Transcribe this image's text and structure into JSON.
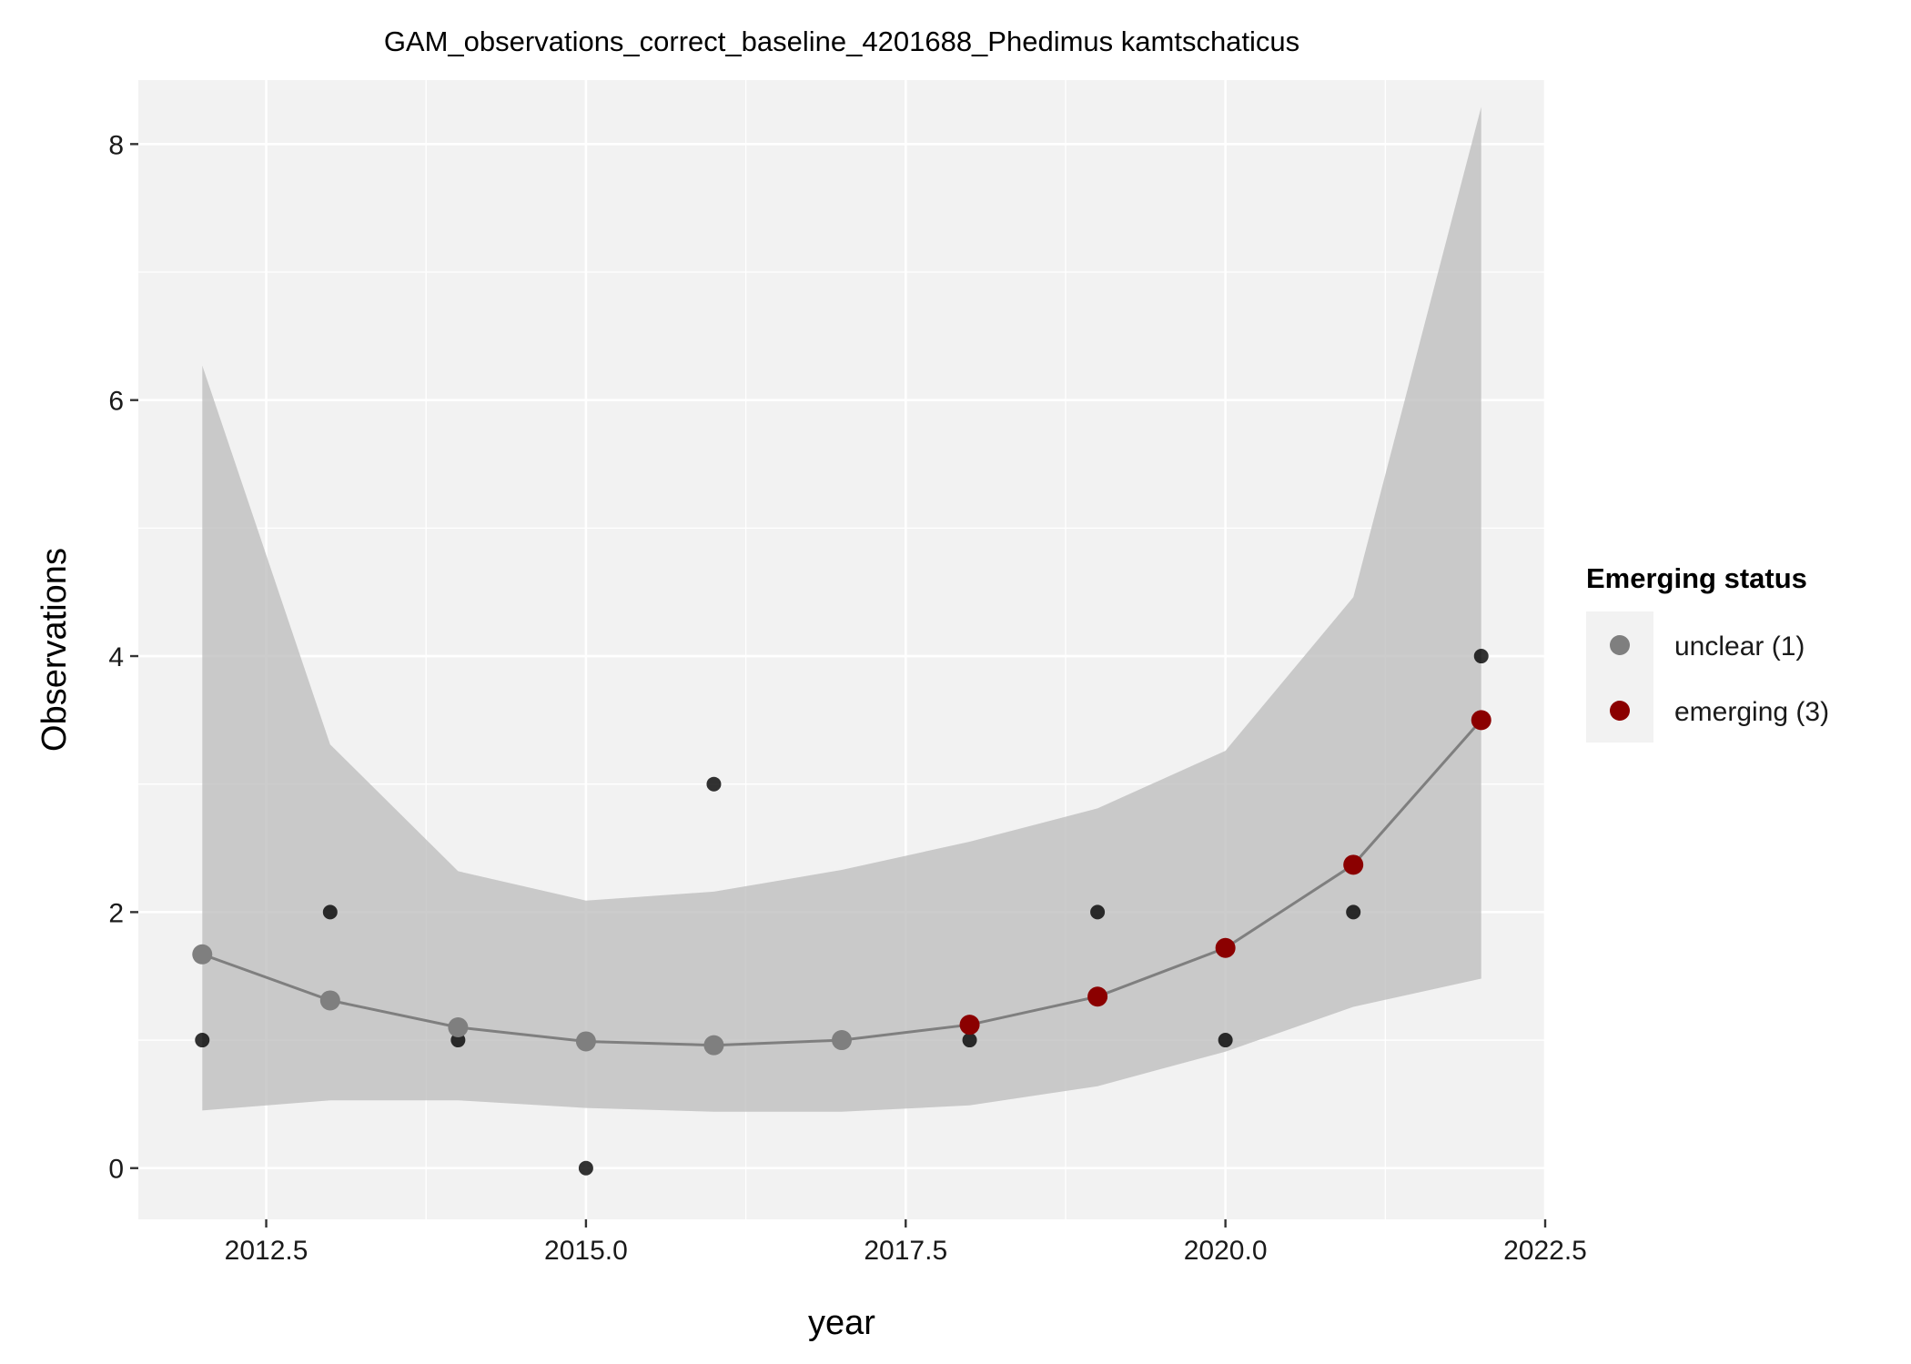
{
  "chart_data": {
    "type": "scatter",
    "title": "GAM_observations_correct_baseline_4201688_Phedimus kamtschaticus",
    "xlabel": "year",
    "ylabel": "Observations",
    "xlim": [
      2011.5,
      2022.5
    ],
    "ylim": [
      -0.4,
      8.5
    ],
    "x_ticks": [
      2012.5,
      2015.0,
      2017.5,
      2020.0,
      2022.5
    ],
    "x_tick_labels": [
      "2012.5",
      "2015.0",
      "2017.5",
      "2020.0",
      "2022.5"
    ],
    "y_ticks": [
      0,
      2,
      4,
      6,
      8
    ],
    "y_tick_labels": [
      "0",
      "2",
      "4",
      "6",
      "8"
    ],
    "grid": true,
    "legend": {
      "title": "Emerging status",
      "position": "right",
      "entries": [
        {
          "label": "unclear (1)",
          "color": "#7f7f7f"
        },
        {
          "label": "emerging (3)",
          "color": "#8b0000"
        }
      ]
    },
    "observed": {
      "color": "#000000",
      "points": [
        {
          "x": 2012,
          "y": 1
        },
        {
          "x": 2013,
          "y": 2
        },
        {
          "x": 2014,
          "y": 1
        },
        {
          "x": 2015,
          "y": 0
        },
        {
          "x": 2016,
          "y": 3
        },
        {
          "x": 2018,
          "y": 1
        },
        {
          "x": 2019,
          "y": 2
        },
        {
          "x": 2020,
          "y": 1
        },
        {
          "x": 2021,
          "y": 2
        },
        {
          "x": 2022,
          "y": 4
        }
      ]
    },
    "fitted": {
      "line_color": "#7f7f7f",
      "ribbon_color": "#bebebe",
      "points": [
        {
          "x": 2012,
          "y": 1.67,
          "lower": 0.45,
          "upper": 6.27,
          "status": "unclear (1)"
        },
        {
          "x": 2013,
          "y": 1.31,
          "lower": 0.53,
          "upper": 3.31,
          "status": "unclear (1)"
        },
        {
          "x": 2014,
          "y": 1.1,
          "lower": 0.53,
          "upper": 2.32,
          "status": "unclear (1)"
        },
        {
          "x": 2015,
          "y": 0.99,
          "lower": 0.47,
          "upper": 2.09,
          "status": "unclear (1)"
        },
        {
          "x": 2016,
          "y": 0.96,
          "lower": 0.44,
          "upper": 2.16,
          "status": "unclear (1)"
        },
        {
          "x": 2017,
          "y": 1.0,
          "lower": 0.44,
          "upper": 2.33,
          "status": "unclear (1)"
        },
        {
          "x": 2018,
          "y": 1.12,
          "lower": 0.49,
          "upper": 2.55,
          "status": "emerging (3)"
        },
        {
          "x": 2019,
          "y": 1.34,
          "lower": 0.64,
          "upper": 2.81,
          "status": "emerging (3)"
        },
        {
          "x": 2020,
          "y": 1.72,
          "lower": 0.91,
          "upper": 3.26,
          "status": "emerging (3)"
        },
        {
          "x": 2021,
          "y": 2.37,
          "lower": 1.26,
          "upper": 4.46,
          "status": "emerging (3)"
        },
        {
          "x": 2022,
          "y": 3.5,
          "lower": 1.48,
          "upper": 8.29,
          "status": "emerging (3)"
        }
      ]
    }
  }
}
